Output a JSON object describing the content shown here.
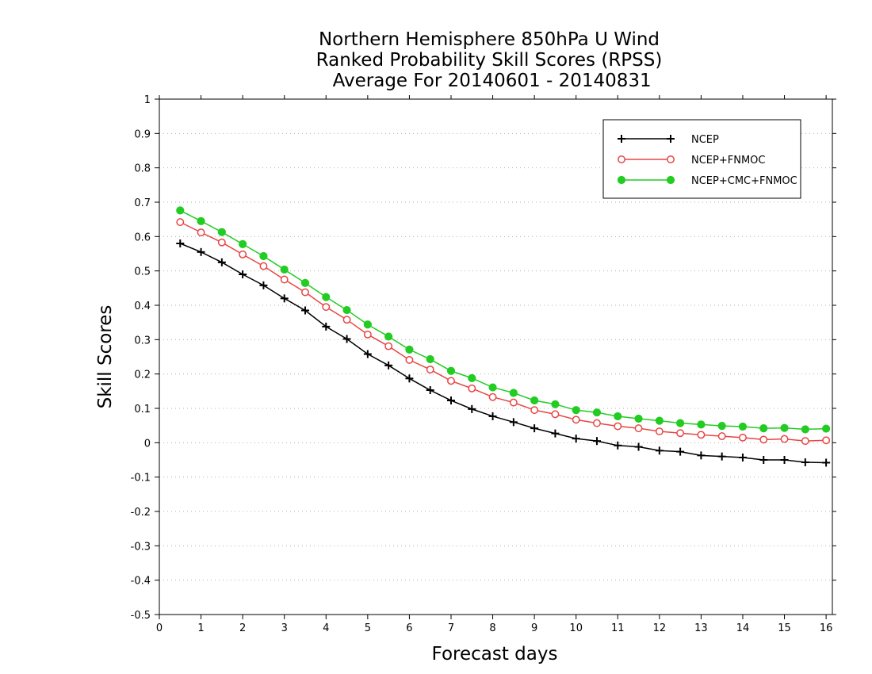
{
  "chart_data": {
    "type": "line",
    "title_lines": [
      "Northern Hemisphere 850hPa U Wind",
      "Ranked Probability Skill Scores (RPSS)",
      " Average For 20140601 - 20140831"
    ],
    "xlabel": "Forecast days",
    "ylabel": "Skill Scores",
    "xlim": [
      0,
      16.15
    ],
    "ylim": [
      -0.5,
      1
    ],
    "xticks": [
      0,
      1,
      2,
      3,
      4,
      5,
      6,
      7,
      8,
      9,
      10,
      11,
      12,
      13,
      14,
      15,
      16
    ],
    "xtick_labels": [
      "0",
      "1",
      "2",
      "3",
      "4",
      "5",
      "6",
      "7",
      "8",
      "9",
      "10",
      "11",
      "12",
      "13",
      "14",
      "15",
      "16"
    ],
    "yticks": [
      -0.5,
      -0.4,
      -0.3,
      -0.2,
      -0.1,
      0,
      0.1,
      0.2,
      0.3,
      0.4,
      0.5,
      0.6,
      0.7,
      0.8,
      0.9,
      1
    ],
    "ytick_labels": [
      "-0.5",
      "-0.4",
      "-0.3",
      "-0.2",
      "-0.1",
      "0",
      "0.1",
      "0.2",
      "0.3",
      "0.4",
      "0.5",
      "0.6",
      "0.7",
      "0.8",
      "0.9",
      "1"
    ],
    "grid": true,
    "legend_position": "top-right",
    "x": [
      0.5,
      1,
      1.5,
      2,
      2.5,
      3,
      3.5,
      4,
      4.5,
      5,
      5.5,
      6,
      6.5,
      7,
      7.5,
      8,
      8.5,
      9,
      9.5,
      10,
      10.5,
      11,
      11.5,
      12,
      12.5,
      13,
      13.5,
      14,
      14.5,
      15,
      15.5,
      16
    ],
    "series": [
      {
        "name": "NCEP",
        "color": "#000000",
        "marker": "plus",
        "values": [
          0.58,
          0.555,
          0.525,
          0.49,
          0.458,
          0.42,
          0.385,
          0.338,
          0.302,
          0.258,
          0.225,
          0.187,
          0.153,
          0.123,
          0.098,
          0.077,
          0.06,
          0.042,
          0.027,
          0.012,
          0.005,
          -0.008,
          -0.012,
          -0.023,
          -0.026,
          -0.037,
          -0.04,
          -0.043,
          -0.05,
          -0.05,
          -0.057,
          -0.058
        ]
      },
      {
        "name": "NCEP+FNMOC",
        "color": "#e84545",
        "marker": "open-circle",
        "values": [
          0.642,
          0.612,
          0.583,
          0.548,
          0.514,
          0.475,
          0.438,
          0.395,
          0.358,
          0.315,
          0.281,
          0.241,
          0.213,
          0.18,
          0.158,
          0.133,
          0.117,
          0.095,
          0.083,
          0.067,
          0.057,
          0.048,
          0.042,
          0.033,
          0.028,
          0.023,
          0.019,
          0.015,
          0.009,
          0.011,
          0.005,
          0.007
        ]
      },
      {
        "name": "NCEP+CMC+FNMOC",
        "color": "#22cc22",
        "marker": "filled-circle",
        "values": [
          0.676,
          0.645,
          0.613,
          0.578,
          0.543,
          0.504,
          0.465,
          0.424,
          0.386,
          0.344,
          0.309,
          0.271,
          0.243,
          0.209,
          0.188,
          0.161,
          0.145,
          0.123,
          0.112,
          0.095,
          0.088,
          0.077,
          0.07,
          0.064,
          0.057,
          0.053,
          0.049,
          0.047,
          0.042,
          0.043,
          0.039,
          0.041
        ]
      }
    ]
  }
}
